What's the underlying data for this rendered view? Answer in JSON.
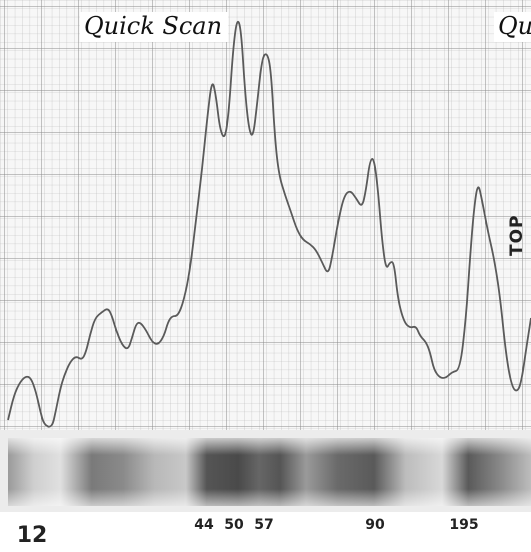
{
  "chart_data": {
    "type": "line",
    "title": "Quick Scan",
    "next_panel_title": "Qu",
    "side_label": "TOP",
    "tick_labels": [
      "12",
      "44",
      "50",
      "57",
      "90",
      "195"
    ],
    "peaks": [
      {
        "label": "44",
        "relative_height": 0.82
      },
      {
        "label": "50",
        "relative_height": 0.98
      },
      {
        "label": "57",
        "relative_height": 0.88
      },
      {
        "label": "90",
        "relative_height": 0.64
      },
      {
        "label": "195",
        "relative_height": 0.6
      }
    ],
    "grid": true,
    "colors": {
      "grid": "#9a9a9a",
      "trace": "#5a5a5a",
      "band_dark": "#3a3a3a",
      "band_light": "#d8d8d8"
    }
  }
}
